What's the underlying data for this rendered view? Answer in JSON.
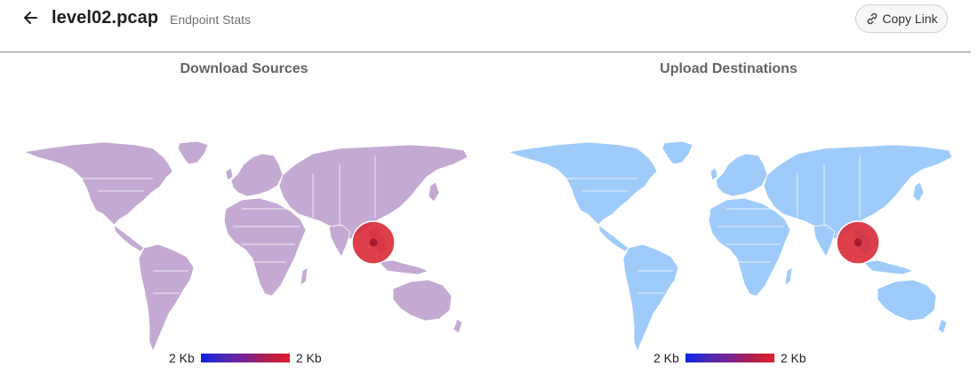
{
  "header": {
    "back_icon": "arrow-left-icon",
    "title": "level02.pcap",
    "subtitle": "Endpoint Stats",
    "copy_link_label": "Copy Link",
    "copy_link_icon": "link-icon"
  },
  "panels": [
    {
      "title": "Download Sources",
      "map_color": "#c4aad2",
      "marker_color": "#d92b36",
      "legend": {
        "min_label": "2 Kb",
        "max_label": "2 Kb"
      }
    },
    {
      "title": "Upload Destinations",
      "map_color": "#9ecbfa",
      "marker_color": "#d92b36",
      "legend": {
        "min_label": "2 Kb",
        "max_label": "2 Kb"
      }
    }
  ],
  "legend_gradient": [
    "#0b23e6",
    "#e11e2a"
  ]
}
